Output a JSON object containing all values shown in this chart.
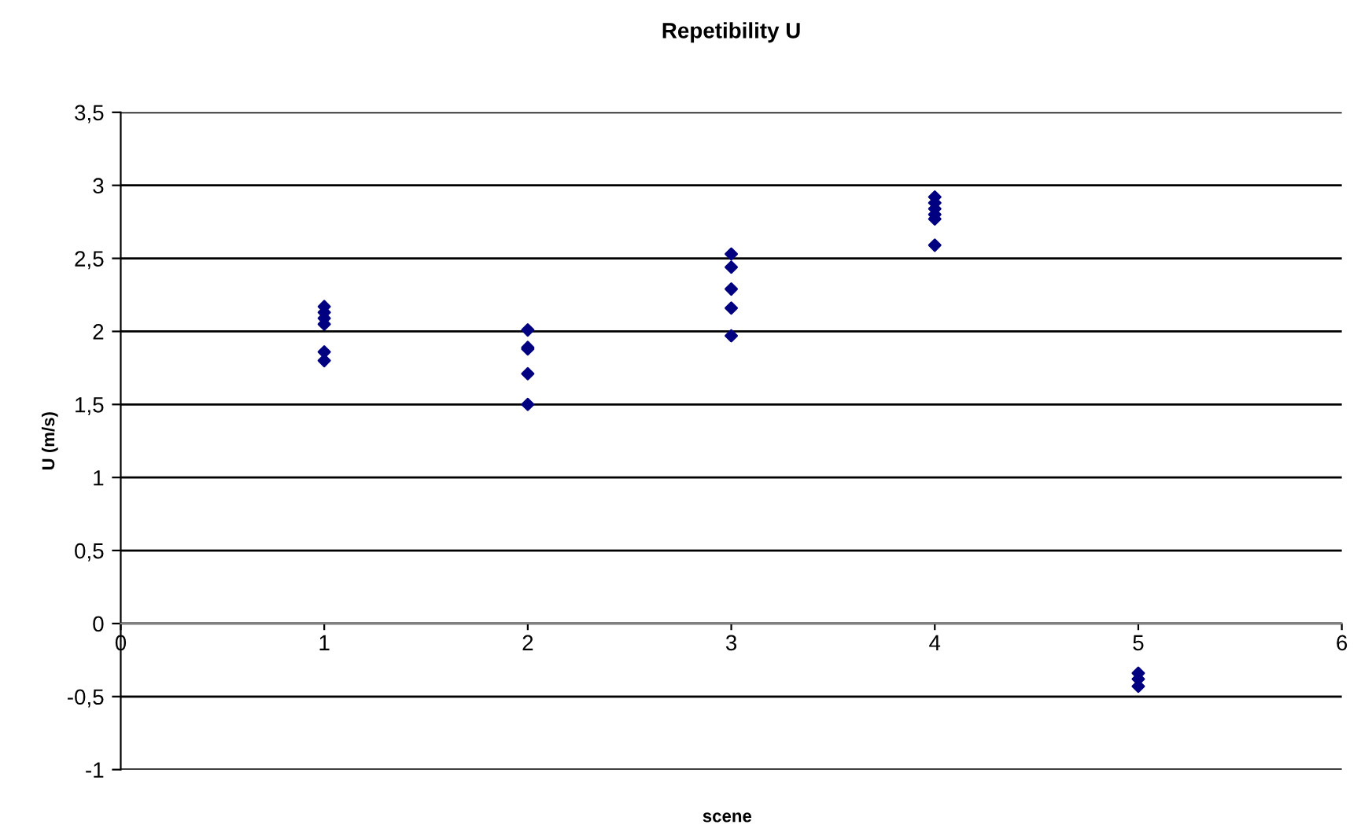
{
  "chart_data": {
    "type": "scatter",
    "title": "Repetibility U",
    "xlabel": "scene",
    "ylabel": "U (m/s)",
    "series": [
      {
        "color": "#000080",
        "x": [
          1,
          1,
          1,
          1,
          1,
          1,
          2,
          2,
          2,
          2,
          2,
          3,
          3,
          3,
          3,
          3,
          4,
          4,
          4,
          4,
          4,
          4,
          5,
          5,
          5
        ],
        "values": [
          2.17,
          2.13,
          2.09,
          2.05,
          1.86,
          1.8,
          2.01,
          1.89,
          1.88,
          1.71,
          1.5,
          2.53,
          2.44,
          2.29,
          2.16,
          1.97,
          2.92,
          2.88,
          2.84,
          2.8,
          2.77,
          2.59,
          -0.34,
          -0.38,
          -0.43
        ]
      }
    ],
    "marker": "diamond",
    "grid": "y",
    "legend": false,
    "xlim": [
      0,
      6
    ],
    "xticks": [
      0,
      1,
      2,
      3,
      4,
      5,
      6
    ],
    "ylim": [
      -1,
      3.5
    ],
    "yticks": [
      {
        "value": -1,
        "label": "-1"
      },
      {
        "value": -0.5,
        "label": "-0,5"
      },
      {
        "value": 0,
        "label": "0"
      },
      {
        "value": 0.5,
        "label": "0,5"
      },
      {
        "value": 1,
        "label": "1"
      },
      {
        "value": 1.5,
        "label": "1,5"
      },
      {
        "value": 2,
        "label": "2"
      },
      {
        "value": 2.5,
        "label": "2,5"
      },
      {
        "value": 3,
        "label": "3"
      },
      {
        "value": 3.5,
        "label": "3,5"
      }
    ]
  }
}
